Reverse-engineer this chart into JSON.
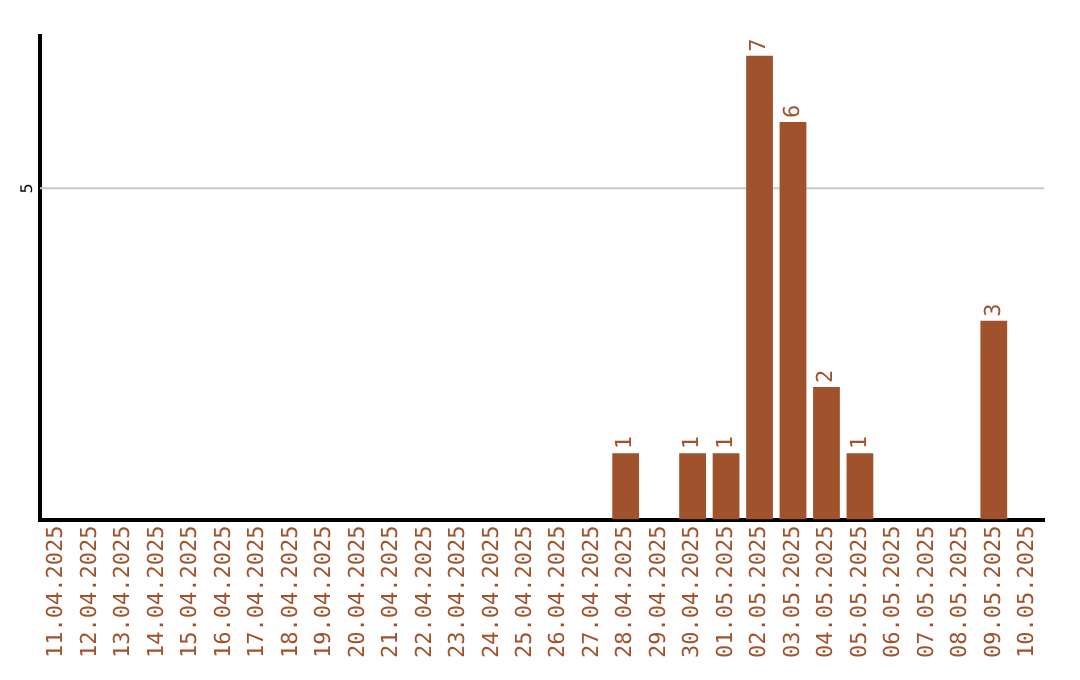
{
  "chart_data": {
    "type": "bar",
    "categories": [
      "11.04.2025",
      "12.04.2025",
      "13.04.2025",
      "14.04.2025",
      "15.04.2025",
      "16.04.2025",
      "17.04.2025",
      "18.04.2025",
      "19.04.2025",
      "20.04.2025",
      "21.04.2025",
      "22.04.2025",
      "23.04.2025",
      "24.04.2025",
      "25.04.2025",
      "26.04.2025",
      "27.04.2025",
      "28.04.2025",
      "29.04.2025",
      "30.04.2025",
      "01.05.2025",
      "02.05.2025",
      "03.05.2025",
      "04.05.2025",
      "05.05.2025",
      "06.05.2025",
      "07.05.2025",
      "08.05.2025",
      "09.05.2025",
      "10.05.2025"
    ],
    "values": [
      null,
      null,
      null,
      null,
      null,
      null,
      null,
      null,
      null,
      null,
      null,
      null,
      null,
      null,
      null,
      null,
      null,
      1,
      null,
      1,
      1,
      7,
      6,
      2,
      1,
      null,
      null,
      null,
      3,
      null
    ],
    "value_labels": [
      null,
      null,
      null,
      null,
      null,
      null,
      null,
      null,
      null,
      null,
      null,
      null,
      null,
      null,
      null,
      null,
      null,
      "1",
      null,
      "1",
      "1",
      "7",
      "6",
      "2",
      "1",
      null,
      null,
      null,
      "3",
      null
    ],
    "color": "#a0522d",
    "ylim": [
      0,
      7.3
    ],
    "ref_lines": [
      {
        "axis": "y",
        "value": 5,
        "label": "5",
        "color": "#c8c8c8"
      }
    ]
  }
}
